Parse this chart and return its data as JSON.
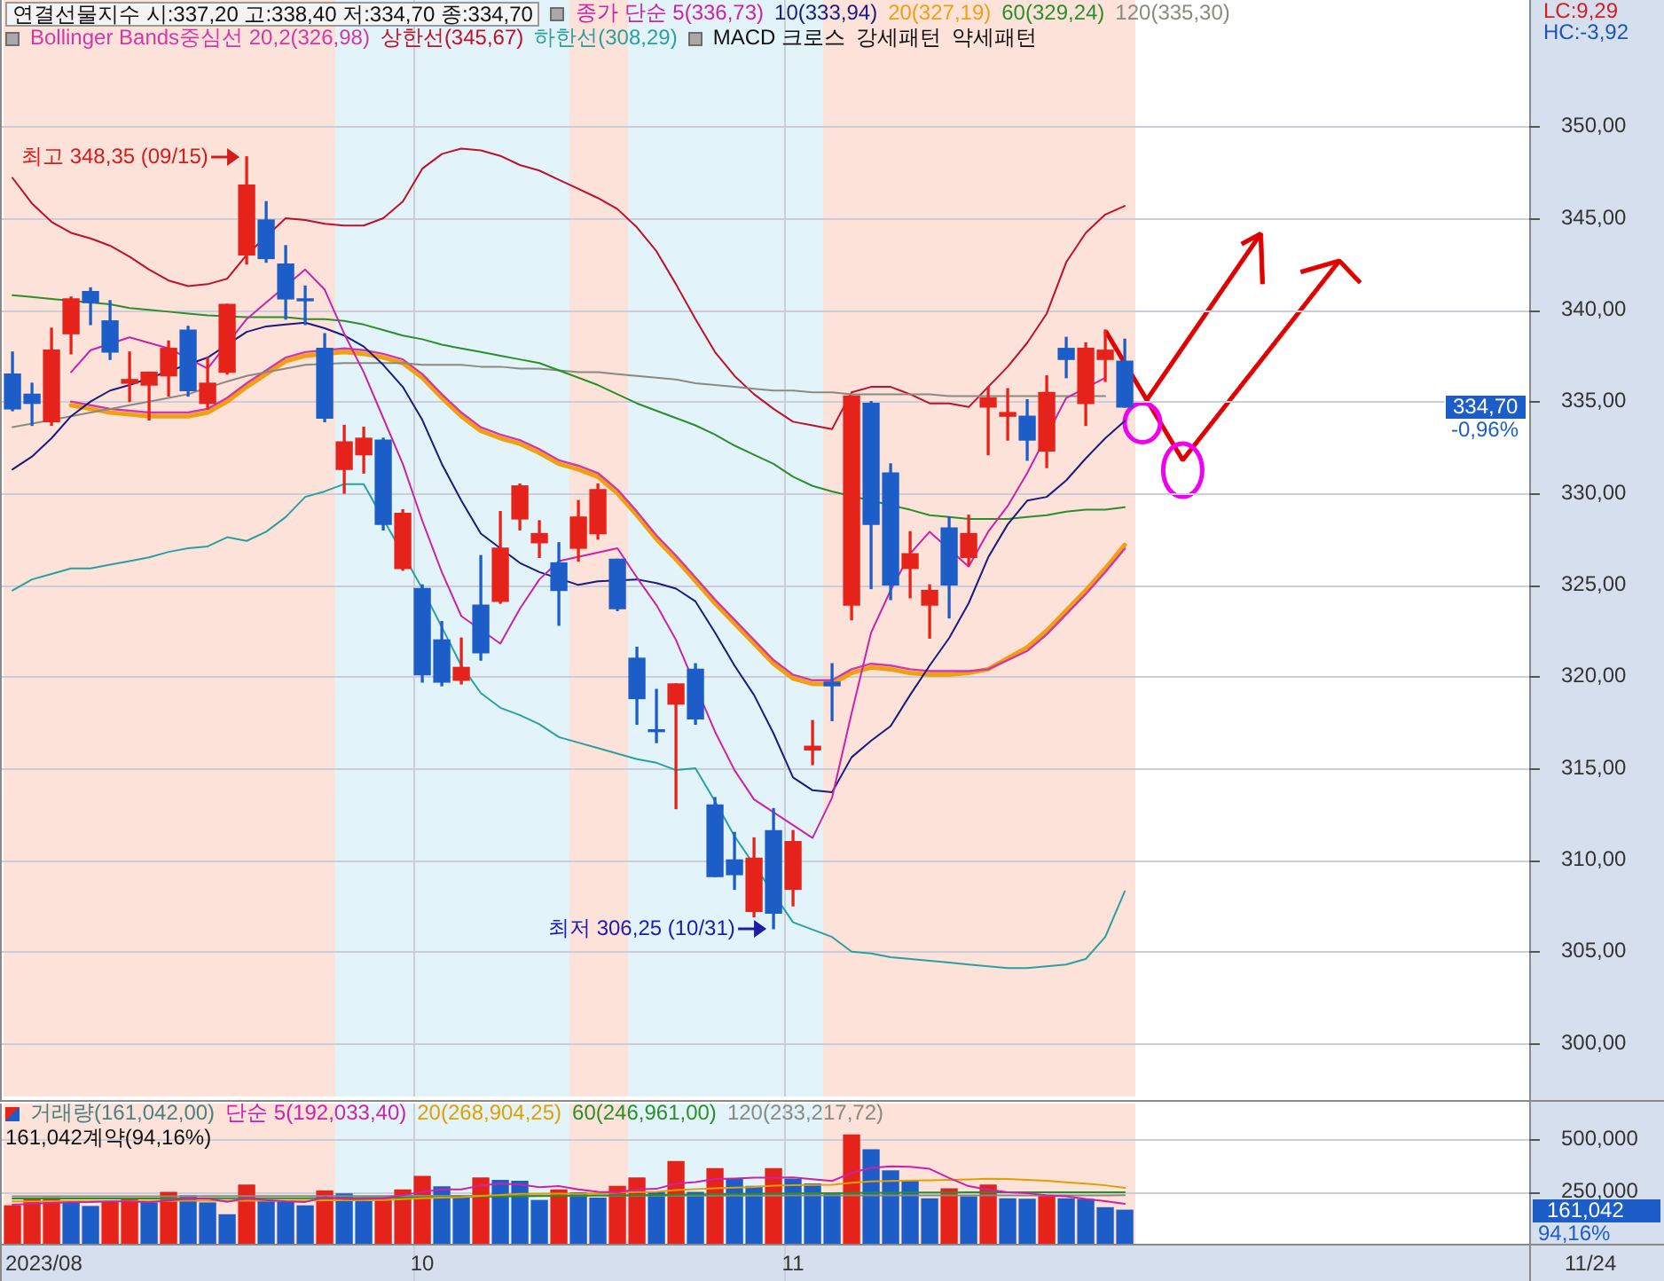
{
  "chart_data": [
    {
      "type": "candlestick",
      "title": "연결선물지수 시:337,20 고:338,40 저:334,70 종:334,70",
      "categories": [
        null,
        null,
        null,
        null,
        null,
        null,
        null,
        null,
        null,
        null,
        null,
        null,
        null,
        null,
        null,
        null,
        null,
        null,
        null,
        null,
        null,
        null,
        null,
        null,
        null,
        null,
        null,
        null,
        null,
        null,
        null,
        null,
        null,
        null,
        null,
        null,
        null,
        null,
        null,
        null,
        null,
        null,
        null,
        null,
        null,
        null,
        null,
        null,
        null,
        null,
        null,
        null,
        null,
        null,
        null,
        null,
        null,
        null
      ],
      "ohlc": [
        [
          336.5,
          337.7,
          334.5,
          334.6
        ],
        [
          335.4,
          336.0,
          333.7,
          334.9
        ],
        [
          333.9,
          339.0,
          333.7,
          337.8
        ],
        [
          338.7,
          340.7,
          337.6,
          340.6
        ],
        [
          341.0,
          341.2,
          339.2,
          340.4
        ],
        [
          339.4,
          340.5,
          337.3,
          337.7
        ],
        [
          336.0,
          337.7,
          335.0,
          336.2
        ],
        [
          335.9,
          336.6,
          334.0,
          336.6
        ],
        [
          336.4,
          338.3,
          335.3,
          337.9
        ],
        [
          338.9,
          339.1,
          335.3,
          335.6
        ],
        [
          334.9,
          337.4,
          334.6,
          336.0
        ],
        [
          336.6,
          340.3,
          336.5,
          340.3
        ],
        [
          343.0,
          348.35,
          342.5,
          346.8
        ],
        [
          344.9,
          345.9,
          342.6,
          342.8
        ],
        [
          342.5,
          343.5,
          339.5,
          340.6
        ],
        [
          340.6,
          341.3,
          339.2,
          340.5
        ],
        [
          337.9,
          338.7,
          333.9,
          334.1
        ],
        [
          331.3,
          333.7,
          330.0,
          332.8
        ],
        [
          332.1,
          333.6,
          331.1,
          333.0
        ],
        [
          332.9,
          333.0,
          328.0,
          328.3
        ],
        [
          325.9,
          329.1,
          325.8,
          328.9
        ],
        [
          324.8,
          325.0,
          319.7,
          320.1
        ],
        [
          322.0,
          323.0,
          319.5,
          319.7
        ],
        [
          319.8,
          322.1,
          319.6,
          320.5
        ],
        [
          323.9,
          326.6,
          320.9,
          321.3
        ],
        [
          324.1,
          329.0,
          324.0,
          327.0
        ],
        [
          328.6,
          330.5,
          328.0,
          330.4
        ],
        [
          327.3,
          328.5,
          326.5,
          327.8
        ],
        [
          326.2,
          327.3,
          322.8,
          324.7
        ],
        [
          327.0,
          329.6,
          326.3,
          328.7
        ],
        [
          327.8,
          330.5,
          327.5,
          330.2
        ],
        [
          326.4,
          326.4,
          323.6,
          323.7
        ],
        [
          321.0,
          321.6,
          317.4,
          318.8
        ],
        [
          317.1,
          319.3,
          316.4,
          317.0
        ],
        [
          318.5,
          319.6,
          312.8,
          319.6
        ],
        [
          320.4,
          320.7,
          317.4,
          317.7
        ],
        [
          313.0,
          313.4,
          309.1,
          309.1
        ],
        [
          310.0,
          311.5,
          308.4,
          309.2
        ],
        [
          307.2,
          311.2,
          306.9,
          310.1
        ],
        [
          311.6,
          312.8,
          306.25,
          307.1
        ],
        [
          308.4,
          311.6,
          307.5,
          311.0
        ],
        [
          316.0,
          317.6,
          315.2,
          316.2
        ],
        [
          319.7,
          320.7,
          317.6,
          319.5
        ],
        [
          323.9,
          335.3,
          323.1,
          335.3
        ],
        [
          334.9,
          335.0,
          324.8,
          328.3
        ],
        [
          331.1,
          331.6,
          324.2,
          325.0
        ],
        [
          325.9,
          327.9,
          324.3,
          326.7
        ],
        [
          323.9,
          325.0,
          322.1,
          324.7
        ],
        [
          328.1,
          328.7,
          323.2,
          325.0
        ],
        [
          326.5,
          328.8,
          326.1,
          327.8
        ],
        [
          334.7,
          335.8,
          332.1,
          335.2
        ],
        [
          334.2,
          335.7,
          332.9,
          334.4
        ],
        [
          334.2,
          335.1,
          331.8,
          332.9
        ],
        [
          332.3,
          336.4,
          331.4,
          335.5
        ],
        [
          337.9,
          338.5,
          336.3,
          337.3
        ],
        [
          334.9,
          338.2,
          333.7,
          337.9
        ],
        [
          337.3,
          338.9,
          336.1,
          337.8
        ],
        [
          337.2,
          338.4,
          334.7,
          334.7
        ]
      ],
      "colors": [
        "#1d5dc8",
        "#1d5dc8",
        "#e6231b",
        "#e6231b",
        "#1d5dc8",
        "#1d5dc8",
        "#e6231b",
        "#e6231b",
        "#e6231b",
        "#1d5dc8",
        "#e6231b",
        "#e6231b",
        "#e6231b",
        "#1d5dc8",
        "#1d5dc8",
        "#1d5dc8",
        "#1d5dc8",
        "#e6231b",
        "#e6231b",
        "#1d5dc8",
        "#e6231b",
        "#1d5dc8",
        "#1d5dc8",
        "#e6231b",
        "#1d5dc8",
        "#e6231b",
        "#e6231b",
        "#e6231b",
        "#1d5dc8",
        "#e6231b",
        "#e6231b",
        "#1d5dc8",
        "#1d5dc8",
        "#1d5dc8",
        "#e6231b",
        "#1d5dc8",
        "#1d5dc8",
        "#1d5dc8",
        "#e6231b",
        "#1d5dc8",
        "#e6231b",
        "#e6231b",
        "#1d5dc8",
        "#e6231b",
        "#1d5dc8",
        "#1d5dc8",
        "#e6231b",
        "#e6231b",
        "#1d5dc8",
        "#e6231b",
        "#e6231b",
        "#e6231b",
        "#1d5dc8",
        "#e6231b",
        "#1d5dc8",
        "#e6231b",
        "#e6231b",
        "#1d5dc8"
      ],
      "series": [
        {
          "type": "line",
          "name": "종가 단순 5(336,73)",
          "color": "#cc22aa",
          "values": [
            null,
            null,
            null,
            336.6,
            337.8,
            null,
            338.5,
            338.2,
            337.9,
            null,
            336.8,
            null,
            339.5,
            340.4,
            null,
            342.2,
            341.1,
            338.7,
            336.6,
            334.1,
            331.6,
            328.5,
            325.7,
            323.3,
            null,
            321.8,
            323.7,
            325.3,
            326.3,
            null,
            null,
            327.0,
            325.4,
            323.9,
            322.0,
            null,
            317.0,
            314.9,
            313.3,
            null,
            null,
            311.2,
            313.4,
            318.0,
            322.4,
            324.7,
            326.7,
            327.9,
            null,
            326.0,
            327.9,
            329.3,
            331.1,
            null,
            335.2,
            null,
            336.3,
            null
          ]
        },
        {
          "type": "line",
          "name": "10(333,94)",
          "color": "#1a1a80",
          "values": [
            331.3,
            332.0,
            333.0,
            334.2,
            335.0,
            335.6,
            335.9,
            null,
            null,
            null,
            337.4,
            null,
            338.8,
            339.1,
            339.2,
            339.3,
            339.0,
            338.6,
            338.0,
            337.0,
            335.8,
            334.0,
            331.6,
            329.6,
            327.8,
            null,
            326.2,
            325.7,
            null,
            325.0,
            325.2,
            null,
            325.3,
            325.1,
            324.8,
            324.1,
            322.4,
            320.6,
            319.0,
            316.9,
            314.5,
            313.8,
            313.7,
            315.6,
            316.5,
            317.3,
            319.0,
            320.6,
            322.1,
            324.0,
            326.5,
            328.3,
            329.6,
            329.8,
            330.7,
            331.9,
            333.0,
            333.94
          ]
        },
        {
          "type": "line",
          "name": "20(327,19)",
          "color": "#f0a010",
          "values": [
            null,
            null,
            null,
            334.8,
            334.6,
            334.4,
            334.3,
            334.2,
            334.2,
            334.2,
            334.4,
            335.0,
            335.8,
            336.5,
            337.2,
            337.5,
            null,
            337.7,
            337.6,
            337.4,
            337.1,
            336.3,
            335.2,
            334.2,
            333.4,
            333.0,
            332.7,
            332.2,
            331.6,
            331.3,
            330.9,
            330.0,
            328.8,
            327.5,
            326.4,
            325.2,
            324.0,
            322.9,
            321.8,
            320.7,
            319.9,
            319.6,
            319.6,
            320.2,
            320.5,
            320.4,
            320.2,
            320.1,
            320.1,
            320.2,
            320.4,
            321.0,
            321.6,
            322.5,
            323.6,
            324.7,
            325.9,
            327.19
          ]
        },
        {
          "type": "line",
          "name": "60(329,24)",
          "color": "#2a8f2a",
          "values": [
            340.8,
            340.7,
            340.6,
            null,
            340.4,
            340.3,
            340.1,
            340.0,
            339.9,
            339.8,
            339.7,
            null,
            339.6,
            339.6,
            339.6,
            339.5,
            339.5,
            339.4,
            339.2,
            338.9,
            338.6,
            338.4,
            338.1,
            337.9,
            337.7,
            337.5,
            337.3,
            337.1,
            336.7,
            336.3,
            335.9,
            335.4,
            334.9,
            334.5,
            334.1,
            333.7,
            333.2,
            332.6,
            332.1,
            331.6,
            330.9,
            330.4,
            330.1,
            null,
            null,
            null,
            329.1,
            328.8,
            328.7,
            328.6,
            328.6,
            328.6,
            328.7,
            328.8,
            329.0,
            329.1,
            329.1,
            329.24
          ]
        },
        {
          "type": "line",
          "name": "120(335,30)",
          "color": "#8a8a80",
          "values": [
            333.6,
            333.8,
            null,
            334.2,
            334.4,
            334.6,
            334.8,
            335.0,
            335.2,
            335.4,
            null,
            336.1,
            336.4,
            336.6,
            336.8,
            337.0,
            null,
            337.1,
            337.1,
            337.1,
            337.1,
            337.0,
            337.0,
            337.0,
            336.9,
            336.9,
            336.8,
            336.8,
            336.7,
            336.6,
            336.6,
            336.5,
            336.4,
            336.3,
            336.2,
            336.0,
            335.9,
            335.8,
            335.7,
            335.6,
            335.6,
            335.5,
            335.5,
            335.4,
            335.4,
            335.4,
            335.4,
            335.4,
            335.3,
            335.3,
            335.3,
            335.3,
            335.3,
            null,
            335.3,
            null,
            335.3,
            null
          ]
        },
        {
          "type": "line",
          "name": "Bollinger Bands중심선 20,2(326,98)",
          "color": "#d03aa8",
          "values": [
            null,
            null,
            null,
            335.0,
            334.8,
            334.6,
            334.5,
            334.4,
            334.4,
            334.4,
            334.6,
            335.2,
            336.0,
            336.7,
            337.4,
            337.7,
            null,
            337.9,
            337.8,
            337.6,
            337.3,
            336.5,
            335.4,
            334.4,
            333.6,
            333.2,
            332.9,
            332.4,
            331.8,
            331.5,
            331.1,
            330.2,
            329.0,
            327.7,
            326.6,
            325.4,
            324.2,
            323.1,
            322.0,
            320.9,
            320.1,
            319.8,
            319.8,
            320.4,
            320.7,
            320.6,
            320.4,
            320.3,
            320.3,
            320.3,
            320.4,
            320.9,
            321.4,
            322.3,
            323.4,
            324.5,
            325.7,
            326.98
          ]
        },
        {
          "type": "line",
          "name": "상한선(345,67)",
          "color": "#c0102a",
          "values": [
            347.2,
            345.8,
            344.8,
            344.2,
            343.9,
            343.5,
            342.9,
            342.2,
            341.6,
            341.3,
            341.4,
            341.7,
            343.0,
            null,
            345.0,
            344.9,
            344.7,
            344.6,
            344.6,
            345.0,
            345.9,
            347.7,
            348.5,
            348.8,
            348.7,
            348.4,
            347.9,
            347.6,
            347.1,
            346.6,
            346.1,
            345.5,
            344.5,
            343.2,
            341.4,
            339.5,
            337.7,
            336.4,
            335.4,
            334.6,
            333.9,
            333.7,
            333.5,
            335.5,
            335.8,
            335.8,
            335.4,
            334.9,
            334.9,
            334.7,
            335.8,
            336.9,
            338.2,
            339.8,
            342.6,
            344.2,
            345.2,
            345.67
          ]
        },
        {
          "type": "line",
          "name": "하한선(308,29)",
          "color": "#2aa0a0",
          "values": [
            324.7,
            325.3,
            325.6,
            325.9,
            325.9,
            326.1,
            326.3,
            326.5,
            326.8,
            327.0,
            327.1,
            327.6,
            327.4,
            327.9,
            328.7,
            329.8,
            330.1,
            330.5,
            330.5,
            null,
            null,
            324.8,
            322.7,
            320.6,
            319.1,
            318.3,
            317.9,
            317.4,
            316.7,
            316.4,
            316.1,
            315.8,
            315.5,
            315.3,
            314.9,
            315.0,
            313.2,
            311.3,
            null,
            null,
            306.6,
            306.2,
            305.8,
            305.0,
            304.9,
            304.7,
            304.6,
            304.5,
            304.4,
            304.3,
            304.2,
            304.1,
            304.1,
            304.2,
            304.3,
            304.6,
            305.8,
            308.29
          ]
        }
      ],
      "annotations": [
        "최고 348,35 (09/15)",
        "최저 306,25 (10/31)",
        "MACD 크로스",
        "강세패턴",
        "약세패턴",
        "LC:9,29",
        "HC:-3,92",
        "334,70",
        "-0,96%"
      ],
      "ylim": [
        297.1,
        356.9
      ],
      "yticks": [
        {
          "value": 300,
          "label": "300,00"
        },
        {
          "value": 305,
          "label": "305,00"
        },
        {
          "value": 310,
          "label": "310,00"
        },
        {
          "value": 315,
          "label": "315,00"
        },
        {
          "value": 320,
          "label": "320,00"
        },
        {
          "value": 325,
          "label": "325,00"
        },
        {
          "value": 330,
          "label": "330,00"
        },
        {
          "value": 335,
          "label": "335,00"
        },
        {
          "value": 340,
          "label": "340,00"
        },
        {
          "value": 345,
          "label": "345,00"
        },
        {
          "value": 350,
          "label": "350,00"
        }
      ],
      "tick_labels": "y",
      "grid": true,
      "legend": "top"
    },
    {
      "type": "bar",
      "categories": [
        null,
        null,
        null,
        null,
        null,
        null,
        null,
        null,
        null,
        null,
        null,
        null,
        null,
        null,
        null,
        null,
        null,
        null,
        null,
        null,
        null,
        "10",
        null,
        null,
        null,
        null,
        null,
        null,
        null,
        null,
        null,
        null,
        null,
        null,
        null,
        null,
        null,
        null,
        null,
        null,
        "11",
        null,
        null,
        null,
        null,
        null,
        null,
        null,
        null,
        null,
        null,
        null,
        null,
        null,
        null,
        null,
        null,
        null
      ],
      "series": [
        {
          "name": "거래량(161,042,00)",
          "colors": [
            "#e6231b",
            "#e6231b",
            "#e6231b",
            "#1d5dc8",
            "#1d5dc8",
            "#e6231b",
            "#e6231b",
            "#1d5dc8",
            "#e6231b",
            "#1d5dc8",
            "#1d5dc8",
            "#1d5dc8",
            "#e6231b",
            "#1d5dc8",
            "#1d5dc8",
            "#1d5dc8",
            "#e6231b",
            "#1d5dc8",
            "#1d5dc8",
            "#e6231b",
            "#e6231b",
            "#e6231b",
            "#1d5dc8",
            "#1d5dc8",
            "#e6231b",
            "#1d5dc8",
            "#1d5dc8",
            "#1d5dc8",
            "#e6231b",
            "#1d5dc8",
            "#1d5dc8",
            "#e6231b",
            "#e6231b",
            "#1d5dc8",
            "#e6231b",
            "#1d5dc8",
            "#e6231b",
            "#1d5dc8",
            "#1d5dc8",
            "#e6231b",
            "#1d5dc8",
            "#1d5dc8",
            "#1d5dc8",
            "#e6231b",
            "#1d5dc8",
            "#1d5dc8",
            "#1d5dc8",
            "#1d5dc8",
            "#e6231b",
            "#1d5dc8",
            "#e6231b",
            "#1d5dc8",
            "#1d5dc8",
            "#e6231b",
            "#1d5dc8",
            "#1d5dc8",
            "#1d5dc8",
            "#1d5dc8"
          ],
          "values": [
            182000,
            216000,
            220000,
            202000,
            179000,
            202000,
            216000,
            196000,
            247000,
            230000,
            196000,
            139000,
            282000,
            202000,
            200000,
            182000,
            253000,
            239000,
            202000,
            219000,
            259000,
            324000,
            273000,
            230000,
            316000,
            304000,
            300000,
            208000,
            259000,
            245000,
            219000,
            276000,
            316000,
            247000,
            395000,
            247000,
            361000,
            310000,
            276000,
            361000,
            310000,
            287000,
            239000,
            523000,
            452000,
            350000,
            301000,
            216000,
            264000,
            225000,
            282000,
            216000,
            214000,
            230000,
            216000,
            213000,
            173000,
            161042
          ]
        },
        {
          "type": "line",
          "name": "단순 5(192,033,40)",
          "color": "#cc22aa",
          "values": [
            188000,
            192000,
            196000,
            199000,
            200000,
            204000,
            204000,
            199000,
            208000,
            218000,
            217000,
            202000,
            219000,
            210000,
            204000,
            201000,
            224000,
            215000,
            215000,
            219000,
            234000,
            249000,
            261000,
            261000,
            280000,
            289000,
            285000,
            272000,
            277000,
            261000,
            250000,
            247000,
            261000,
            264000,
            289000,
            296000,
            311000,
            314000,
            318000,
            318000,
            319000,
            310000,
            302000,
            341000,
            365000,
            372000,
            370000,
            360000,
            316000,
            277000,
            260000,
            247000,
            243000,
            233000,
            228000,
            215000,
            205000,
            192033.4
          ]
        },
        {
          "type": "line",
          "name": "20(268,904,25)",
          "color": "#e0a000",
          "values": [
            204000,
            204000,
            205000,
            205000,
            205000,
            null,
            null,
            206000,
            206000,
            207000,
            207000,
            null,
            207000,
            207000,
            207000,
            207000,
            209000,
            209000,
            209000,
            210000,
            214000,
            219000,
            222000,
            224000,
            230000,
            235000,
            240000,
            240000,
            241000,
            240000,
            242000,
            246000,
            248000,
            250000,
            258000,
            262000,
            267000,
            270000,
            273000,
            279000,
            282000,
            283000,
            284000,
            293000,
            300000,
            302000,
            304000,
            305000,
            307000,
            309000,
            312000,
            311000,
            307000,
            303000,
            295000,
            289000,
            281000,
            268904.25
          ]
        },
        {
          "type": "line",
          "name": "60(246,961,00)",
          "color": "#2a8f2a",
          "values": [
            218000,
            218000,
            218000,
            218000,
            218000,
            218000,
            218000,
            218000,
            218000,
            218000,
            219000,
            219000,
            219000,
            219000,
            219000,
            219000,
            null,
            null,
            221000,
            221000,
            222000,
            223000,
            224000,
            null,
            226000,
            227000,
            228000,
            229000,
            230000,
            231000,
            232000,
            233000,
            234000,
            235000,
            236000,
            237000,
            238000,
            239000,
            240000,
            241000,
            242000,
            243000,
            243000,
            244000,
            245000,
            245000,
            246000,
            246000,
            246000,
            247000,
            247000,
            247000,
            247000,
            247000,
            247000,
            247000,
            247000,
            246961
          ]
        },
        {
          "type": "line",
          "name": "120(233,217,72)",
          "color": "#8a8a80",
          "values": [
            228000,
            228000,
            228000,
            228000,
            228000,
            228000,
            228000,
            228000,
            228000,
            228000,
            229000,
            229000,
            229000,
            229000,
            229000,
            229000,
            229000,
            229000,
            229000,
            229000,
            230000,
            230000,
            230000,
            230000,
            null,
            230000,
            null,
            230000,
            null,
            230000,
            231000,
            231000,
            231000,
            231000,
            231000,
            231000,
            231000,
            231000,
            231000,
            231000,
            232000,
            232000,
            232000,
            232000,
            232000,
            232000,
            232000,
            232000,
            232000,
            232000,
            233000,
            233000,
            233000,
            233000,
            233000,
            233000,
            233000,
            233217.72
          ]
        }
      ],
      "annotations": [
        "161,042계약(94,16%)",
        "161,042",
        "94,16%",
        "11/24",
        "2023/08"
      ],
      "ylim": [
        0,
        674000
      ],
      "yticks": [
        {
          "value": 250000,
          "label": "250,000"
        },
        {
          "value": 500000,
          "label": "500,000"
        }
      ],
      "grid": true,
      "legend": "top"
    }
  ]
}
